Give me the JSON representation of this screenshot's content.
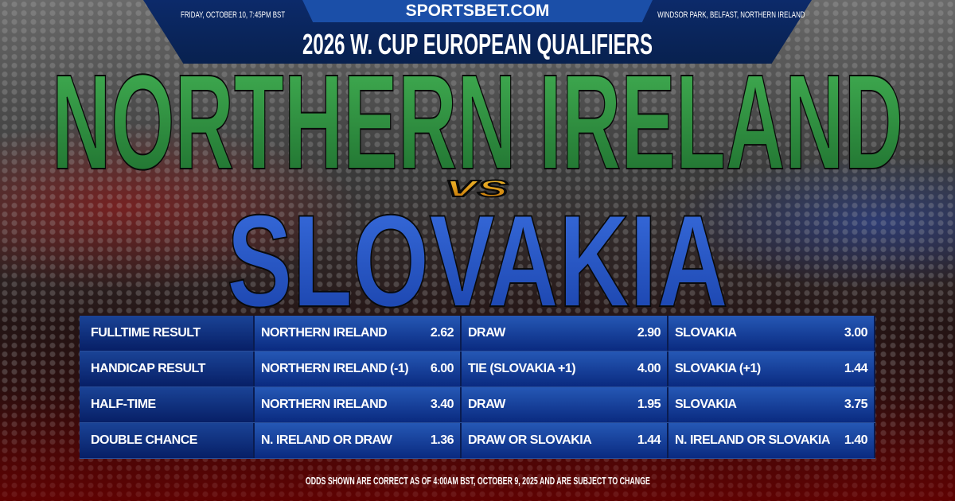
{
  "header": {
    "brand": "SPORTSBET.COM",
    "date": "FRIDAY, OCTOBER 10, 7:45PM BST",
    "venue": "WINDSOR PARK, BELFAST, NORTHERN IRELAND",
    "competition": "2026 W. CUP EUROPEAN QUALIFIERS"
  },
  "matchup": {
    "home": "NORTHERN IRELAND",
    "vs": "vs",
    "away": "SLOVAKIA",
    "home_color": "#2a8f3e",
    "away_color": "#1f4fc0"
  },
  "odds": [
    {
      "market": "FULLTIME RESULT",
      "o": [
        {
          "l": "NORTHERN IRELAND",
          "v": "2.62"
        },
        {
          "l": "DRAW",
          "v": "2.90"
        },
        {
          "l": "SLOVAKIA",
          "v": "3.00"
        }
      ]
    },
    {
      "market": "HANDICAP RESULT",
      "o": [
        {
          "l": "NORTHERN IRELAND (-1)",
          "v": "6.00"
        },
        {
          "l": "TIE (SLOVAKIA +1)",
          "v": "4.00"
        },
        {
          "l": "SLOVAKIA (+1)",
          "v": "1.44"
        }
      ]
    },
    {
      "market": "HALF-TIME",
      "o": [
        {
          "l": "NORTHERN IRELAND",
          "v": "3.40"
        },
        {
          "l": "DRAW",
          "v": "1.95"
        },
        {
          "l": "SLOVAKIA",
          "v": "3.75"
        }
      ]
    },
    {
      "market": "DOUBLE CHANCE",
      "o": [
        {
          "l": "N. IRELAND OR DRAW",
          "v": "1.36"
        },
        {
          "l": "DRAW OR SLOVAKIA",
          "v": "1.44"
        },
        {
          "l": "N. IRELAND OR SLOVAKIA",
          "v": "1.40"
        }
      ]
    }
  ],
  "disclaimer": "ODDS SHOWN ARE CORRECT AS OF 4:00AM BST, OCTOBER 9, 2025 AND ARE SUBJECT TO CHANGE"
}
